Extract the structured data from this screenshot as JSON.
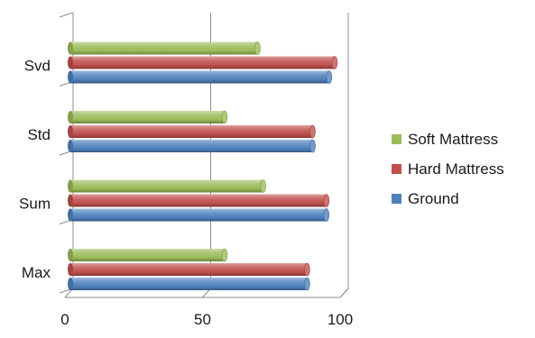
{
  "chart_data": {
    "type": "bar",
    "orientation": "horizontal",
    "categories": [
      "Max",
      "Sum",
      "Std",
      "Svd"
    ],
    "series": [
      {
        "name": "Ground",
        "color": "#4f81bd",
        "values": [
          88,
          95,
          90,
          96
        ]
      },
      {
        "name": "Hard Mattress",
        "color": "#c0504d",
        "values": [
          88,
          95,
          90,
          98
        ]
      },
      {
        "name": "Soft Mattress",
        "color": "#9bbb59",
        "values": [
          58,
          72,
          58,
          70
        ]
      }
    ],
    "legend_order": [
      "Soft Mattress",
      "Hard Mattress",
      "Ground"
    ],
    "xlim": [
      0,
      100
    ],
    "xticks": [
      0,
      50,
      100
    ],
    "grid": true,
    "legend_position": "right",
    "style": "3d-cylinder"
  }
}
